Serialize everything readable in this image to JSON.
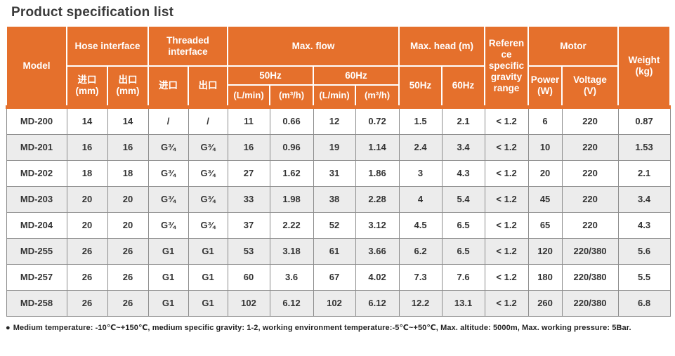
{
  "page": {
    "title": "Product specification list"
  },
  "table": {
    "header": {
      "model": "Model",
      "hose_interface": "Hose interface",
      "hose_inlet": "进口\n(mm)",
      "hose_outlet": "出口\n(mm)",
      "threaded_interface": "Threaded\ninterface",
      "threaded_inlet": "进口",
      "threaded_outlet": "出口",
      "max_flow": "Max. flow",
      "flow_50hz": "50Hz",
      "flow_60hz": "60Hz",
      "flow_50_lmin": "(L/min)",
      "flow_50_m3h": "(m³/h)",
      "flow_60_lmin": "(L/min)",
      "flow_60_m3h": "(m³/h)",
      "max_head": "Max. head (m)",
      "head_50hz": "50Hz",
      "head_60hz": "60Hz",
      "ref_gravity": "Reference specific gravity range",
      "motor": "Motor",
      "power": "Power\n(W)",
      "voltage": "Voltage\n(V)",
      "weight": "Weight\n(kg)"
    },
    "rows": [
      [
        "MD-200",
        "14",
        "14",
        "/",
        "/",
        "11",
        "0.66",
        "12",
        "0.72",
        "1.5",
        "2.1",
        "< 1.2",
        "6",
        "220",
        "0.87"
      ],
      [
        "MD-201",
        "16",
        "16",
        "G¾",
        "G¾",
        "16",
        "0.96",
        "19",
        "1.14",
        "2.4",
        "3.4",
        "< 1.2",
        "10",
        "220",
        "1.53"
      ],
      [
        "MD-202",
        "18",
        "18",
        "G¾",
        "G¾",
        "27",
        "1.62",
        "31",
        "1.86",
        "3",
        "4.3",
        "< 1.2",
        "20",
        "220",
        "2.1"
      ],
      [
        "MD-203",
        "20",
        "20",
        "G¾",
        "G¾",
        "33",
        "1.98",
        "38",
        "2.28",
        "4",
        "5.4",
        "< 1.2",
        "45",
        "220",
        "3.4"
      ],
      [
        "MD-204",
        "20",
        "20",
        "G¾",
        "G¾",
        "37",
        "2.22",
        "52",
        "3.12",
        "4.5",
        "6.5",
        "< 1.2",
        "65",
        "220",
        "4.3"
      ],
      [
        "MD-255",
        "26",
        "26",
        "G1",
        "G1",
        "53",
        "3.18",
        "61",
        "3.66",
        "6.2",
        "6.5",
        "< 1.2",
        "120",
        "220/380",
        "5.6"
      ],
      [
        "MD-257",
        "26",
        "26",
        "G1",
        "G1",
        "60",
        "3.6",
        "67",
        "4.02",
        "7.3",
        "7.6",
        "< 1.2",
        "180",
        "220/380",
        "5.5"
      ],
      [
        "MD-258",
        "26",
        "26",
        "G1",
        "G1",
        "102",
        "6.12",
        "102",
        "6.12",
        "12.2",
        "13.1",
        "< 1.2",
        "260",
        "220/380",
        "6.8"
      ]
    ]
  },
  "footnote": {
    "bullet": "●",
    "text": "Medium temperature: -10℃~+150℃, medium specific gravity: 1-2, working environment temperature:-5℃~+50℃, Max. altitude: 5000m, Max. working pressure: 5Bar."
  },
  "colors": {
    "header_orange": "#e5702c",
    "row_alt_gray": "#ececec",
    "cell_border_gray": "#8c8c8c",
    "text_dark": "#3a3a3a"
  }
}
